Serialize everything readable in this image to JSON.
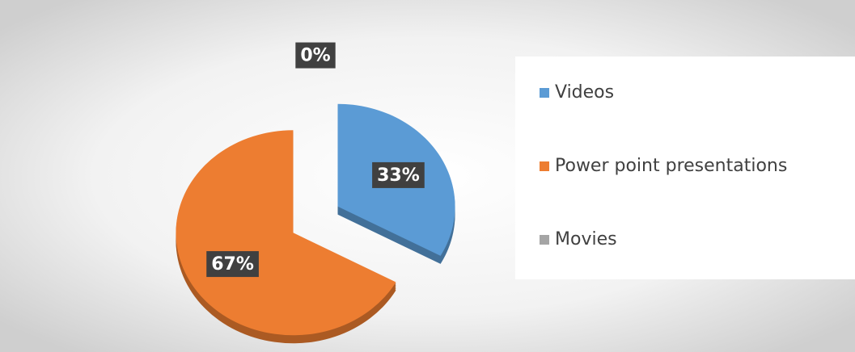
{
  "chart_data": {
    "type": "pie",
    "categories": [
      "Videos",
      "Power point presentations",
      "Movies"
    ],
    "values": [
      33,
      67,
      0
    ],
    "value_labels": [
      "33%",
      "67%",
      "0%"
    ],
    "colors": [
      "#5b9bd5",
      "#ed7d31",
      "#a5a5a5"
    ],
    "legend": "right"
  }
}
